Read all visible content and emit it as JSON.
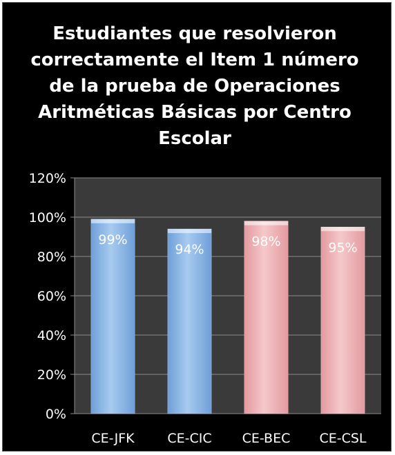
{
  "chart_data": {
    "type": "bar",
    "title": "Estudiantes que resolvieron correctamente el Item 1 número de la prueba de Operaciones Aritméticas Básicas por Centro Escolar",
    "categories": [
      "CE-JFK",
      "CE-CIC",
      "CE-BEC",
      "CE-CSL"
    ],
    "values": [
      0.99,
      0.94,
      0.98,
      0.95
    ],
    "data_labels": [
      "99%",
      "94%",
      "98%",
      "95%"
    ],
    "bar_colors": [
      "#9cc3ec",
      "#9cc3ec",
      "#f2bcbe",
      "#f2bcbe"
    ],
    "ylim": [
      0,
      1.2
    ],
    "yticks": [
      0,
      0.2,
      0.4,
      0.6,
      0.8,
      1.0,
      1.2
    ],
    "ytick_labels": [
      "0%",
      "20%",
      "40%",
      "60%",
      "80%",
      "100%",
      "120%"
    ],
    "grid": true,
    "legend": "none",
    "xlabel": "",
    "ylabel": ""
  },
  "colors": {
    "background": "#000000",
    "plot_area": "#3a3a3a",
    "gridline": "#8c8c8c",
    "text": "#ffffff"
  }
}
